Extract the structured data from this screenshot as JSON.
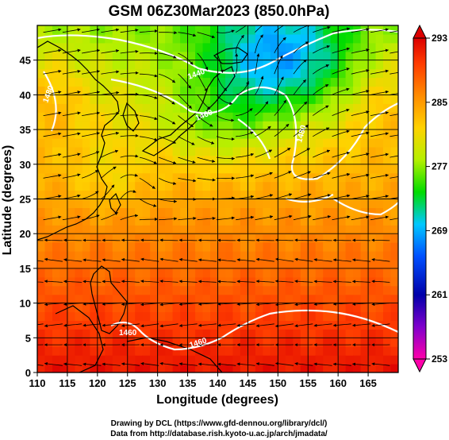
{
  "title": "GSM 06Z30Mar2023 (850.0hPa)",
  "x_axis": {
    "label": "Longitude (degrees)",
    "ticks": [
      110,
      115,
      120,
      125,
      130,
      135,
      140,
      145,
      150,
      155,
      160,
      165
    ],
    "range": [
      110,
      170
    ]
  },
  "y_axis": {
    "label": "Latitude  (degrees)",
    "ticks": [
      0,
      5,
      10,
      15,
      20,
      25,
      30,
      35,
      40,
      45
    ],
    "range": [
      0,
      50
    ]
  },
  "colorbar": {
    "ticks": [
      293,
      285,
      277,
      269,
      261,
      253
    ],
    "range": [
      253,
      293
    ],
    "colors": [
      "#ff00aa",
      "#0000aa",
      "#0050ff",
      "#00c8ff",
      "#00dc00",
      "#b4f000",
      "#ffd200",
      "#ff8c00",
      "#ff3c00",
      "#dc0000"
    ]
  },
  "contour_labels": [
    "1440",
    "1460",
    "1480",
    "1460",
    "1480",
    "1460"
  ],
  "credits": {
    "line1": "Drawing by DCL (https://www.gfd-dennou.org/library/dcl/)",
    "line2": "Data from http://database.rish.kyoto-u.ac.jp/arch/jmadata/"
  }
}
